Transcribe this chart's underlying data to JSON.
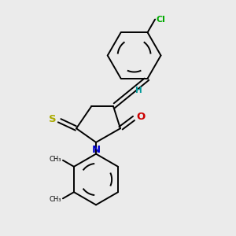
{
  "background_color": "#ebebeb",
  "bond_color": "#000000",
  "cl_color": "#00aa00",
  "h_color": "#009999",
  "n_color": "#0000cc",
  "o_color": "#cc0000",
  "s_color": "#aaaa00",
  "figsize": [
    3.0,
    3.0
  ],
  "dpi": 100,
  "xlim": [
    0,
    10
  ],
  "ylim": [
    0,
    10
  ]
}
